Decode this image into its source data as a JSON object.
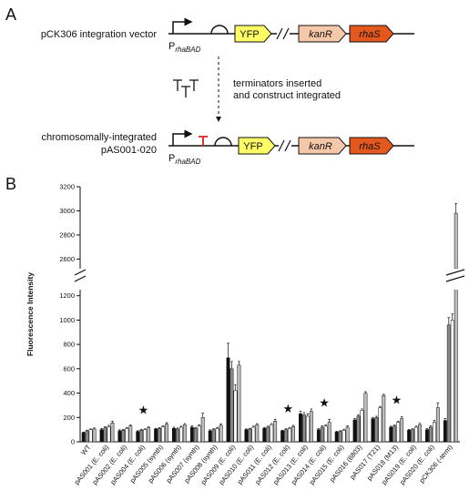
{
  "panel_a": {
    "label": "A",
    "top_label": "pCK306 integration vector",
    "promoter": "P",
    "promoter_sub": "rhaBAD",
    "genes": [
      "YFP",
      "kanR",
      "rhaS"
    ],
    "arrow_text": [
      "terminators inserted",
      "and construct integrated"
    ],
    "bottom_label": [
      "chromosomally-integrated",
      "pAS001-020"
    ]
  },
  "panel_b_label": "B",
  "chart_data": {
    "type": "bar",
    "y_label": "Fluorescence Intensity",
    "categories": [
      "WT",
      "pAS001 (E. coli)",
      "pAS002 (E. coli)",
      "pAS004 (E. coli)",
      "pAS005 (synth)",
      "pAS006 (synth)",
      "pAS007 (synth)",
      "pAS008 (synth)",
      "pAS009 (E. coli)",
      "pAS010 (E. coli)",
      "pAS011 (E. coli)",
      "pAS012 (E. coli)",
      "pAS013 (E. coli)",
      "pAS014 (E. coli)",
      "pAS015 (E. coli)",
      "pAS016 (6803)",
      "pAS017 (T21)",
      "pAS018 (M13)",
      "pAS019 (E. coli)",
      "pAS020 (E. coli)",
      "pCK306 (-term)"
    ],
    "series": [
      {
        "color": "#111111",
        "values": [
          75,
          100,
          90,
          85,
          105,
          110,
          120,
          90,
          690,
          100,
          110,
          90,
          230,
          100,
          80,
          180,
          190,
          120,
          95,
          100,
          175
        ],
        "errors": [
          5,
          10,
          8,
          6,
          6,
          10,
          10,
          8,
          120,
          6,
          8,
          6,
          20,
          8,
          6,
          10,
          10,
          8,
          6,
          10,
          15
        ]
      },
      {
        "color": "#8a8a8a",
        "values": [
          90,
          115,
          95,
          95,
          110,
          105,
          110,
          100,
          600,
          105,
          120,
          100,
          220,
          120,
          85,
          210,
          200,
          130,
          100,
          120,
          960
        ],
        "errors": [
          6,
          10,
          6,
          6,
          8,
          8,
          8,
          8,
          60,
          6,
          8,
          8,
          20,
          10,
          6,
          10,
          10,
          8,
          8,
          10,
          60
        ]
      },
      {
        "color": "#ffffff",
        "values": [
          100,
          125,
          110,
          100,
          125,
          120,
          130,
          110,
          420,
          120,
          140,
          110,
          210,
          130,
          95,
          260,
          280,
          160,
          120,
          160,
          1000
        ],
        "errors": [
          6,
          10,
          8,
          6,
          8,
          8,
          10,
          8,
          50,
          8,
          10,
          8,
          20,
          10,
          8,
          10,
          10,
          10,
          8,
          15,
          50
        ]
      },
      {
        "color": "#bdbdbd",
        "values": [
          105,
          155,
          130,
          115,
          145,
          140,
          200,
          135,
          630,
          140,
          170,
          125,
          250,
          160,
          120,
          400,
          380,
          190,
          140,
          280,
          2980
        ],
        "errors": [
          8,
          15,
          10,
          8,
          12,
          10,
          35,
          12,
          30,
          10,
          15,
          10,
          20,
          25,
          10,
          12,
          10,
          15,
          12,
          40,
          80
        ]
      }
    ],
    "segments": [
      {
        "ylim": [
          0,
          1250
        ],
        "yticks": [
          0,
          200,
          400,
          600,
          800,
          1000,
          1200
        ]
      },
      {
        "ylim": [
          2520,
          3200
        ],
        "yticks": [
          2600,
          2800,
          3000,
          3200
        ]
      }
    ],
    "annotations": [
      {
        "category": "pAS004 (E. coli)",
        "text": "★"
      },
      {
        "category": "pAS012 (E. coli)",
        "text": "★"
      },
      {
        "category": "pAS014 (E. coli)",
        "text": "★"
      },
      {
        "category": "pAS018 (M13)",
        "text": "★"
      }
    ]
  }
}
